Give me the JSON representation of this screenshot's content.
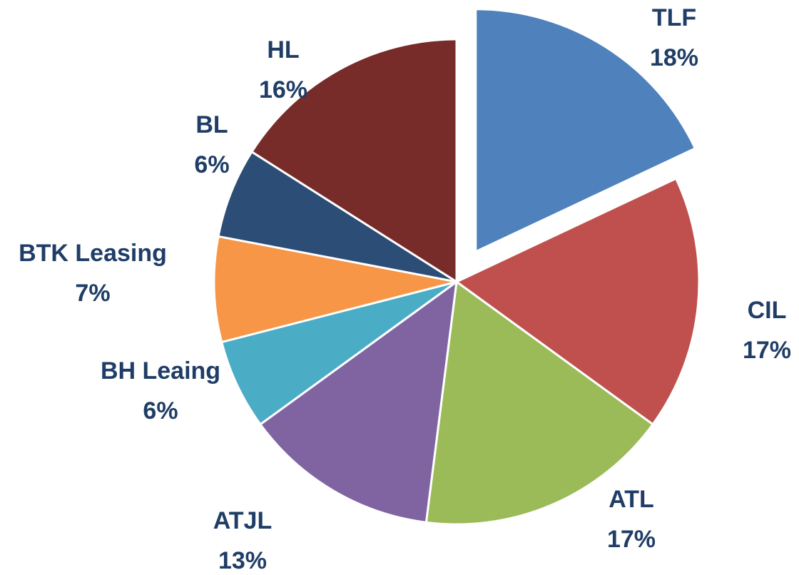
{
  "chart_data": {
    "type": "pie",
    "categories": [
      "TLF",
      "CIL",
      "ATL",
      "ATJL",
      "BH Leaing",
      "BTK Leasing",
      "BL",
      "HL"
    ],
    "values": [
      18,
      17,
      17,
      13,
      6,
      7,
      6,
      16
    ],
    "value_labels": [
      "18%",
      "17%",
      "17%",
      "13%",
      "6%",
      "7%",
      "6%",
      "16%"
    ],
    "colors": [
      "#4f81bd",
      "#c0504d",
      "#9bbb59",
      "#8064a2",
      "#4bacc6",
      "#f79646",
      "#2c4d75",
      "#772c2a"
    ],
    "exploded": [
      "TLF"
    ]
  }
}
